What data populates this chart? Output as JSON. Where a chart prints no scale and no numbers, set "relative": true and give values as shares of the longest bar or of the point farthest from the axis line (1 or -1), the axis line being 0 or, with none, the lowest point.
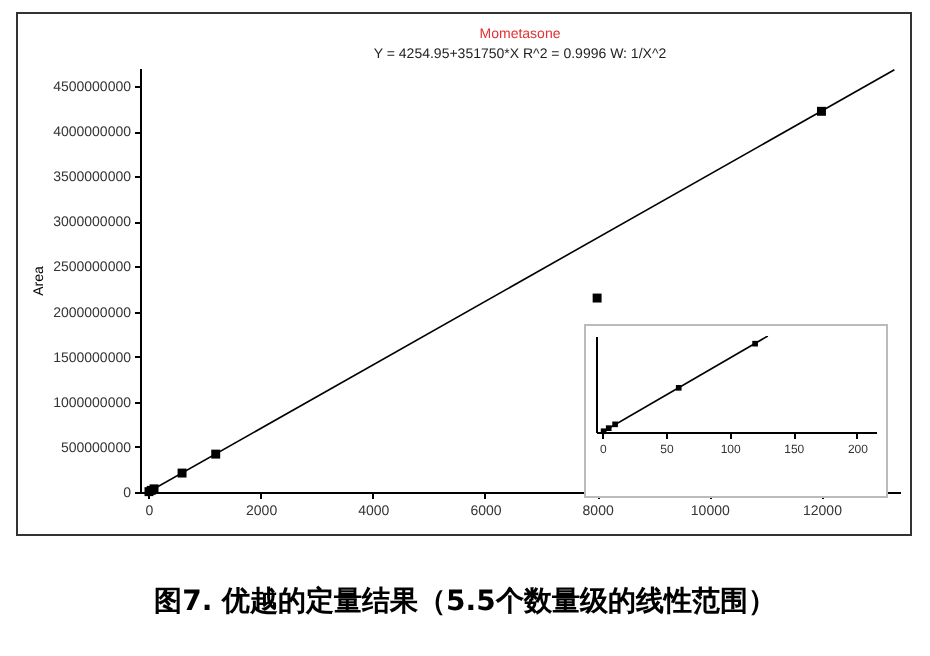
{
  "chart_data": [
    {
      "type": "scatter",
      "title": "Mometasone",
      "subtitle": "Y = 4254.95+351750*X  R^2 = 0.9996  W: 1/X^2",
      "ylabel": "Area",
      "xlim": [
        -150,
        13400
      ],
      "xticks": [
        0,
        2000,
        4000,
        6000,
        8000,
        10000,
        12000
      ],
      "ylim": [
        0,
        4700000000
      ],
      "yticks": [
        0,
        500000000,
        1000000000,
        1500000000,
        2000000000,
        2500000000,
        3000000000,
        3500000000,
        4000000000,
        4500000000
      ],
      "grid": false,
      "annotations": [
        "图7. 优越的定量结果（5.5个数量级的线性范围）"
      ],
      "series": [
        {
          "marker": "square",
          "color": "#000000",
          "x": [
            10,
            50,
            100,
            600,
            1200,
            8000,
            12000
          ],
          "values": [
            4000000,
            18000000,
            35000000,
            210000000,
            420000000,
            2150000000,
            4220000000
          ]
        },
        {
          "type": "line",
          "color": "#000000",
          "x": [
            0,
            13300
          ],
          "values": [
            0,
            4680000000
          ]
        }
      ]
    },
    {
      "type": "scatter",
      "relative": true,
      "tick_labels": "x",
      "xlim": [
        -5,
        215
      ],
      "xticks": [
        0,
        50,
        100,
        150,
        200
      ],
      "grid": false,
      "series": [
        {
          "marker": "square",
          "color": "#000000",
          "x": [
            1,
            5,
            10,
            60,
            120
          ],
          "values": [
            0.008,
            0.04,
            0.08,
            0.46,
            0.92
          ]
        },
        {
          "type": "line",
          "color": "#000000",
          "x": [
            0,
            130
          ],
          "values": [
            0,
            1
          ]
        }
      ]
    }
  ]
}
